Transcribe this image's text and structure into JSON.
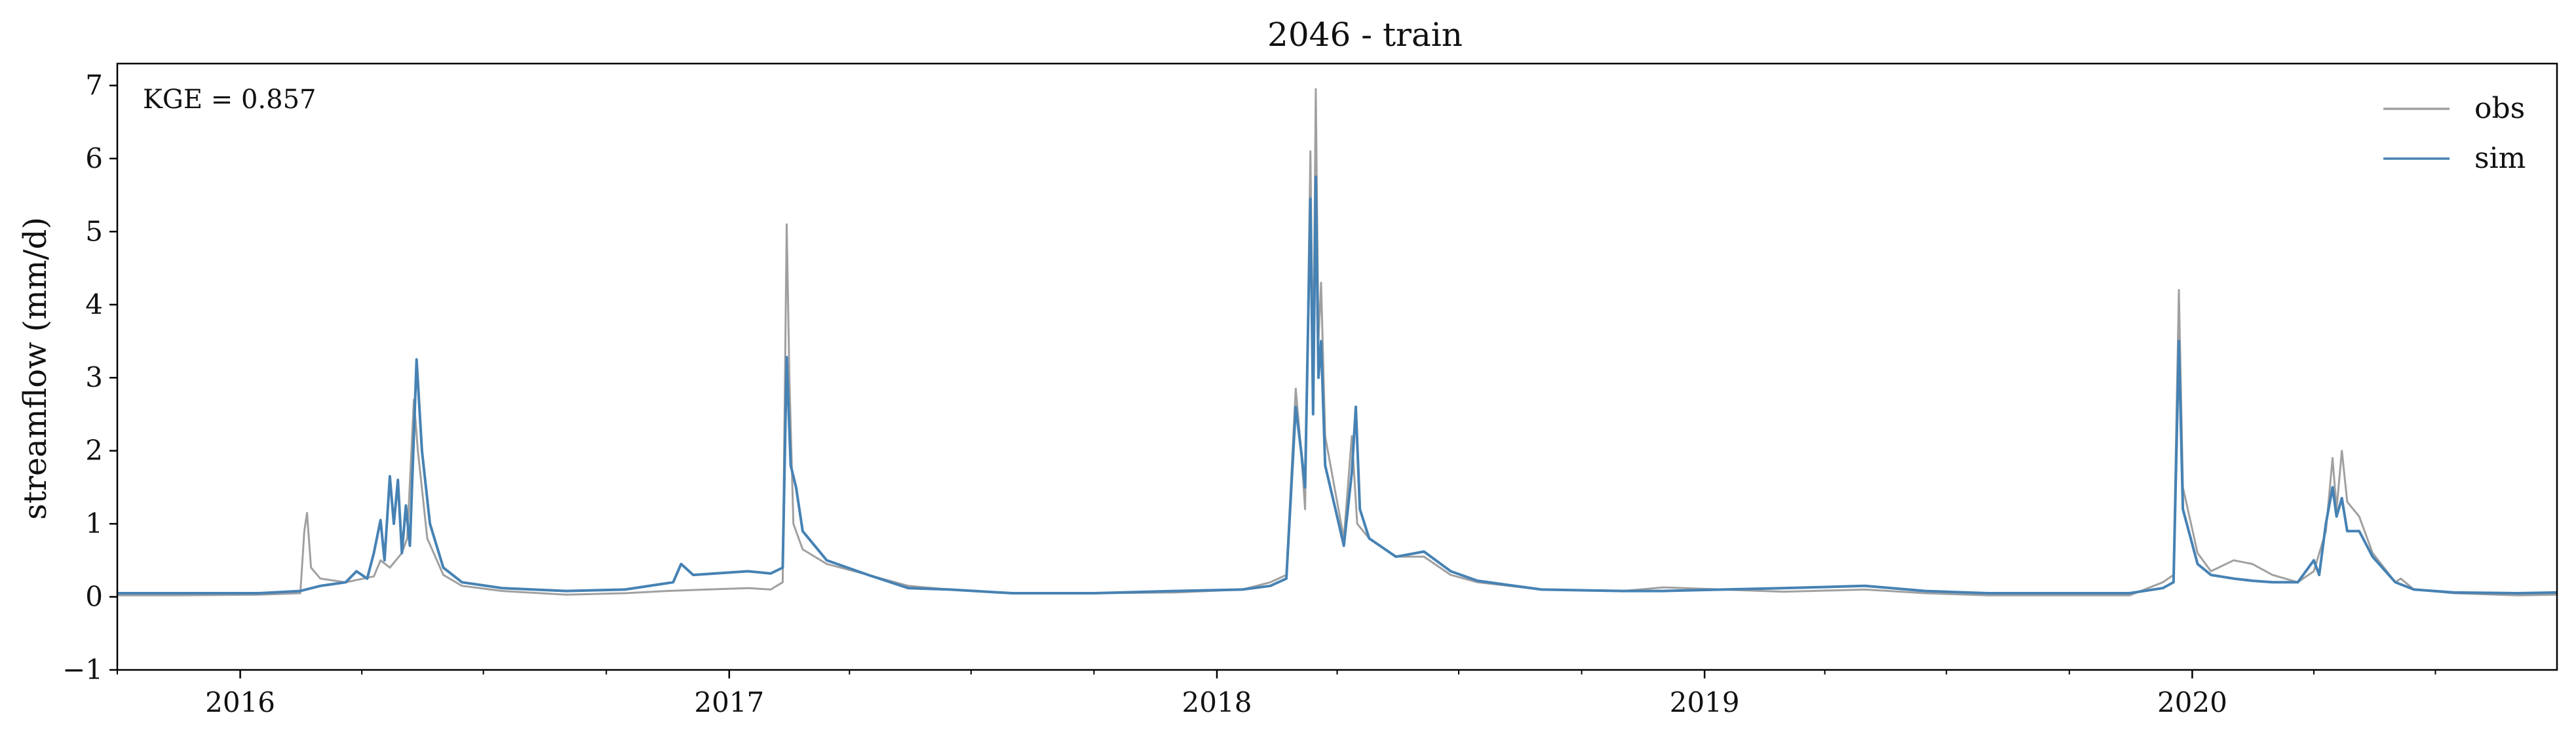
{
  "chart_data": {
    "type": "line",
    "title": "2046 - train",
    "xlabel": "",
    "ylabel": "streamflow (mm/d)",
    "annotation": "KGE = 0.857",
    "xlim": [
      "2015-10-01",
      "2020-09-30"
    ],
    "ylim": [
      -1,
      7.3
    ],
    "x_ticks": [
      "2016-01-01",
      "2017-01-01",
      "2018-01-01",
      "2019-01-01",
      "2020-01-01"
    ],
    "x_tick_labels": [
      "2016",
      "2017",
      "2018",
      "2019",
      "2020"
    ],
    "y_ticks": [
      -1,
      0,
      1,
      2,
      3,
      4,
      5,
      6,
      7
    ],
    "y_tick_labels": [
      "−1",
      "0",
      "1",
      "2",
      "3",
      "4",
      "5",
      "6",
      "7"
    ],
    "grid": false,
    "legend_position": "top-right",
    "series": [
      {
        "name": "obs",
        "color": "#a0a0a0",
        "points": [
          [
            "2015-10-01",
            0.02
          ],
          [
            "2015-11-15",
            0.02
          ],
          [
            "2016-01-15",
            0.03
          ],
          [
            "2016-02-15",
            0.05
          ],
          [
            "2016-02-18",
            0.9
          ],
          [
            "2016-02-20",
            1.15
          ],
          [
            "2016-02-23",
            0.4
          ],
          [
            "2016-03-01",
            0.25
          ],
          [
            "2016-03-20",
            0.2
          ],
          [
            "2016-04-10",
            0.28
          ],
          [
            "2016-04-15",
            0.5
          ],
          [
            "2016-04-22",
            0.4
          ],
          [
            "2016-05-01",
            0.6
          ],
          [
            "2016-05-05",
            0.8
          ],
          [
            "2016-05-10",
            2.7
          ],
          [
            "2016-05-13",
            2.0
          ],
          [
            "2016-05-20",
            0.8
          ],
          [
            "2016-06-01",
            0.3
          ],
          [
            "2016-06-15",
            0.15
          ],
          [
            "2016-07-15",
            0.08
          ],
          [
            "2016-09-01",
            0.03
          ],
          [
            "2016-10-15",
            0.05
          ],
          [
            "2016-11-15",
            0.08
          ],
          [
            "2016-12-15",
            0.1
          ],
          [
            "2017-01-15",
            0.12
          ],
          [
            "2017-02-01",
            0.1
          ],
          [
            "2017-02-10",
            0.2
          ],
          [
            "2017-02-13",
            5.1
          ],
          [
            "2017-02-15",
            3.0
          ],
          [
            "2017-02-18",
            1.0
          ],
          [
            "2017-02-25",
            0.65
          ],
          [
            "2017-03-15",
            0.45
          ],
          [
            "2017-04-15",
            0.3
          ],
          [
            "2017-05-15",
            0.15
          ],
          [
            "2017-06-15",
            0.1
          ],
          [
            "2017-08-01",
            0.05
          ],
          [
            "2017-10-01",
            0.05
          ],
          [
            "2017-12-01",
            0.06
          ],
          [
            "2018-01-20",
            0.1
          ],
          [
            "2018-02-10",
            0.2
          ],
          [
            "2018-02-22",
            0.3
          ],
          [
            "2018-03-01",
            2.85
          ],
          [
            "2018-03-05",
            2.0
          ],
          [
            "2018-03-08",
            1.2
          ],
          [
            "2018-03-12",
            6.1
          ],
          [
            "2018-03-14",
            3.0
          ],
          [
            "2018-03-16",
            6.95
          ],
          [
            "2018-03-18",
            3.5
          ],
          [
            "2018-03-20",
            4.3
          ],
          [
            "2018-03-23",
            2.2
          ],
          [
            "2018-04-01",
            1.3
          ],
          [
            "2018-04-06",
            0.8
          ],
          [
            "2018-04-12",
            2.2
          ],
          [
            "2018-04-16",
            1.0
          ],
          [
            "2018-04-25",
            0.8
          ],
          [
            "2018-05-15",
            0.55
          ],
          [
            "2018-06-05",
            0.55
          ],
          [
            "2018-06-25",
            0.3
          ],
          [
            "2018-07-15",
            0.2
          ],
          [
            "2018-09-01",
            0.1
          ],
          [
            "2018-11-01",
            0.08
          ],
          [
            "2018-12-01",
            0.13
          ],
          [
            "2019-01-15",
            0.1
          ],
          [
            "2019-03-01",
            0.07
          ],
          [
            "2019-05-01",
            0.1
          ],
          [
            "2019-06-15",
            0.05
          ],
          [
            "2019-08-01",
            0.02
          ],
          [
            "2019-10-01",
            0.02
          ],
          [
            "2019-11-15",
            0.02
          ],
          [
            "2019-12-10",
            0.2
          ],
          [
            "2019-12-18",
            0.3
          ],
          [
            "2019-12-22",
            4.2
          ],
          [
            "2019-12-25",
            1.5
          ],
          [
            "2020-01-05",
            0.6
          ],
          [
            "2020-01-15",
            0.35
          ],
          [
            "2020-02-01",
            0.5
          ],
          [
            "2020-02-15",
            0.45
          ],
          [
            "2020-03-01",
            0.3
          ],
          [
            "2020-03-20",
            0.2
          ],
          [
            "2020-04-01",
            0.35
          ],
          [
            "2020-04-10",
            0.9
          ],
          [
            "2020-04-15",
            1.9
          ],
          [
            "2020-04-18",
            1.2
          ],
          [
            "2020-04-22",
            2.0
          ],
          [
            "2020-04-26",
            1.3
          ],
          [
            "2020-05-05",
            1.1
          ],
          [
            "2020-05-15",
            0.6
          ],
          [
            "2020-06-01",
            0.2
          ],
          [
            "2020-06-05",
            0.25
          ],
          [
            "2020-06-15",
            0.1
          ],
          [
            "2020-07-15",
            0.05
          ],
          [
            "2020-09-01",
            0.02
          ],
          [
            "2020-09-30",
            0.03
          ]
        ]
      },
      {
        "name": "sim",
        "color": "#4682b4",
        "points": [
          [
            "2015-10-01",
            0.05
          ],
          [
            "2015-11-15",
            0.05
          ],
          [
            "2016-01-15",
            0.05
          ],
          [
            "2016-02-15",
            0.08
          ],
          [
            "2016-03-01",
            0.15
          ],
          [
            "2016-03-20",
            0.2
          ],
          [
            "2016-03-28",
            0.35
          ],
          [
            "2016-04-05",
            0.25
          ],
          [
            "2016-04-10",
            0.6
          ],
          [
            "2016-04-15",
            1.05
          ],
          [
            "2016-04-18",
            0.5
          ],
          [
            "2016-04-22",
            1.65
          ],
          [
            "2016-04-25",
            1.0
          ],
          [
            "2016-04-28",
            1.6
          ],
          [
            "2016-05-01",
            0.6
          ],
          [
            "2016-05-04",
            1.25
          ],
          [
            "2016-05-07",
            0.7
          ],
          [
            "2016-05-12",
            3.25
          ],
          [
            "2016-05-16",
            2.0
          ],
          [
            "2016-05-22",
            1.0
          ],
          [
            "2016-06-01",
            0.4
          ],
          [
            "2016-06-15",
            0.2
          ],
          [
            "2016-07-15",
            0.12
          ],
          [
            "2016-09-01",
            0.08
          ],
          [
            "2016-10-15",
            0.1
          ],
          [
            "2016-11-20",
            0.2
          ],
          [
            "2016-11-26",
            0.45
          ],
          [
            "2016-12-05",
            0.3
          ],
          [
            "2017-01-15",
            0.35
          ],
          [
            "2017-02-01",
            0.32
          ],
          [
            "2017-02-10",
            0.4
          ],
          [
            "2017-02-13",
            3.28
          ],
          [
            "2017-02-16",
            1.8
          ],
          [
            "2017-02-20",
            1.5
          ],
          [
            "2017-02-25",
            0.9
          ],
          [
            "2017-03-15",
            0.5
          ],
          [
            "2017-04-15",
            0.3
          ],
          [
            "2017-05-15",
            0.12
          ],
          [
            "2017-06-15",
            0.1
          ],
          [
            "2017-08-01",
            0.05
          ],
          [
            "2017-10-01",
            0.05
          ],
          [
            "2017-12-01",
            0.08
          ],
          [
            "2018-01-20",
            0.1
          ],
          [
            "2018-02-10",
            0.15
          ],
          [
            "2018-02-22",
            0.25
          ],
          [
            "2018-03-01",
            2.6
          ],
          [
            "2018-03-05",
            2.0
          ],
          [
            "2018-03-08",
            1.5
          ],
          [
            "2018-03-12",
            5.45
          ],
          [
            "2018-03-14",
            2.5
          ],
          [
            "2018-03-16",
            5.75
          ],
          [
            "2018-03-18",
            3.0
          ],
          [
            "2018-03-20",
            3.5
          ],
          [
            "2018-03-23",
            1.8
          ],
          [
            "2018-04-01",
            1.1
          ],
          [
            "2018-04-06",
            0.7
          ],
          [
            "2018-04-12",
            1.7
          ],
          [
            "2018-04-15",
            2.6
          ],
          [
            "2018-04-18",
            1.2
          ],
          [
            "2018-04-25",
            0.8
          ],
          [
            "2018-05-15",
            0.55
          ],
          [
            "2018-06-05",
            0.62
          ],
          [
            "2018-06-25",
            0.35
          ],
          [
            "2018-07-15",
            0.22
          ],
          [
            "2018-09-01",
            0.1
          ],
          [
            "2018-11-01",
            0.08
          ],
          [
            "2018-12-01",
            0.08
          ],
          [
            "2019-01-15",
            0.1
          ],
          [
            "2019-03-01",
            0.12
          ],
          [
            "2019-05-01",
            0.15
          ],
          [
            "2019-06-15",
            0.08
          ],
          [
            "2019-08-01",
            0.05
          ],
          [
            "2019-10-01",
            0.05
          ],
          [
            "2019-11-15",
            0.05
          ],
          [
            "2019-12-10",
            0.12
          ],
          [
            "2019-12-18",
            0.2
          ],
          [
            "2019-12-22",
            3.5
          ],
          [
            "2019-12-25",
            1.2
          ],
          [
            "2020-01-05",
            0.45
          ],
          [
            "2020-01-15",
            0.3
          ],
          [
            "2020-02-01",
            0.25
          ],
          [
            "2020-02-15",
            0.22
          ],
          [
            "2020-03-01",
            0.2
          ],
          [
            "2020-03-20",
            0.2
          ],
          [
            "2020-04-01",
            0.5
          ],
          [
            "2020-04-05",
            0.3
          ],
          [
            "2020-04-10",
            1.0
          ],
          [
            "2020-04-15",
            1.5
          ],
          [
            "2020-04-18",
            1.1
          ],
          [
            "2020-04-22",
            1.35
          ],
          [
            "2020-04-26",
            0.9
          ],
          [
            "2020-05-05",
            0.9
          ],
          [
            "2020-05-15",
            0.55
          ],
          [
            "2020-06-01",
            0.2
          ],
          [
            "2020-06-15",
            0.1
          ],
          [
            "2020-07-15",
            0.06
          ],
          [
            "2020-09-01",
            0.05
          ],
          [
            "2020-09-30",
            0.06
          ]
        ]
      }
    ]
  }
}
